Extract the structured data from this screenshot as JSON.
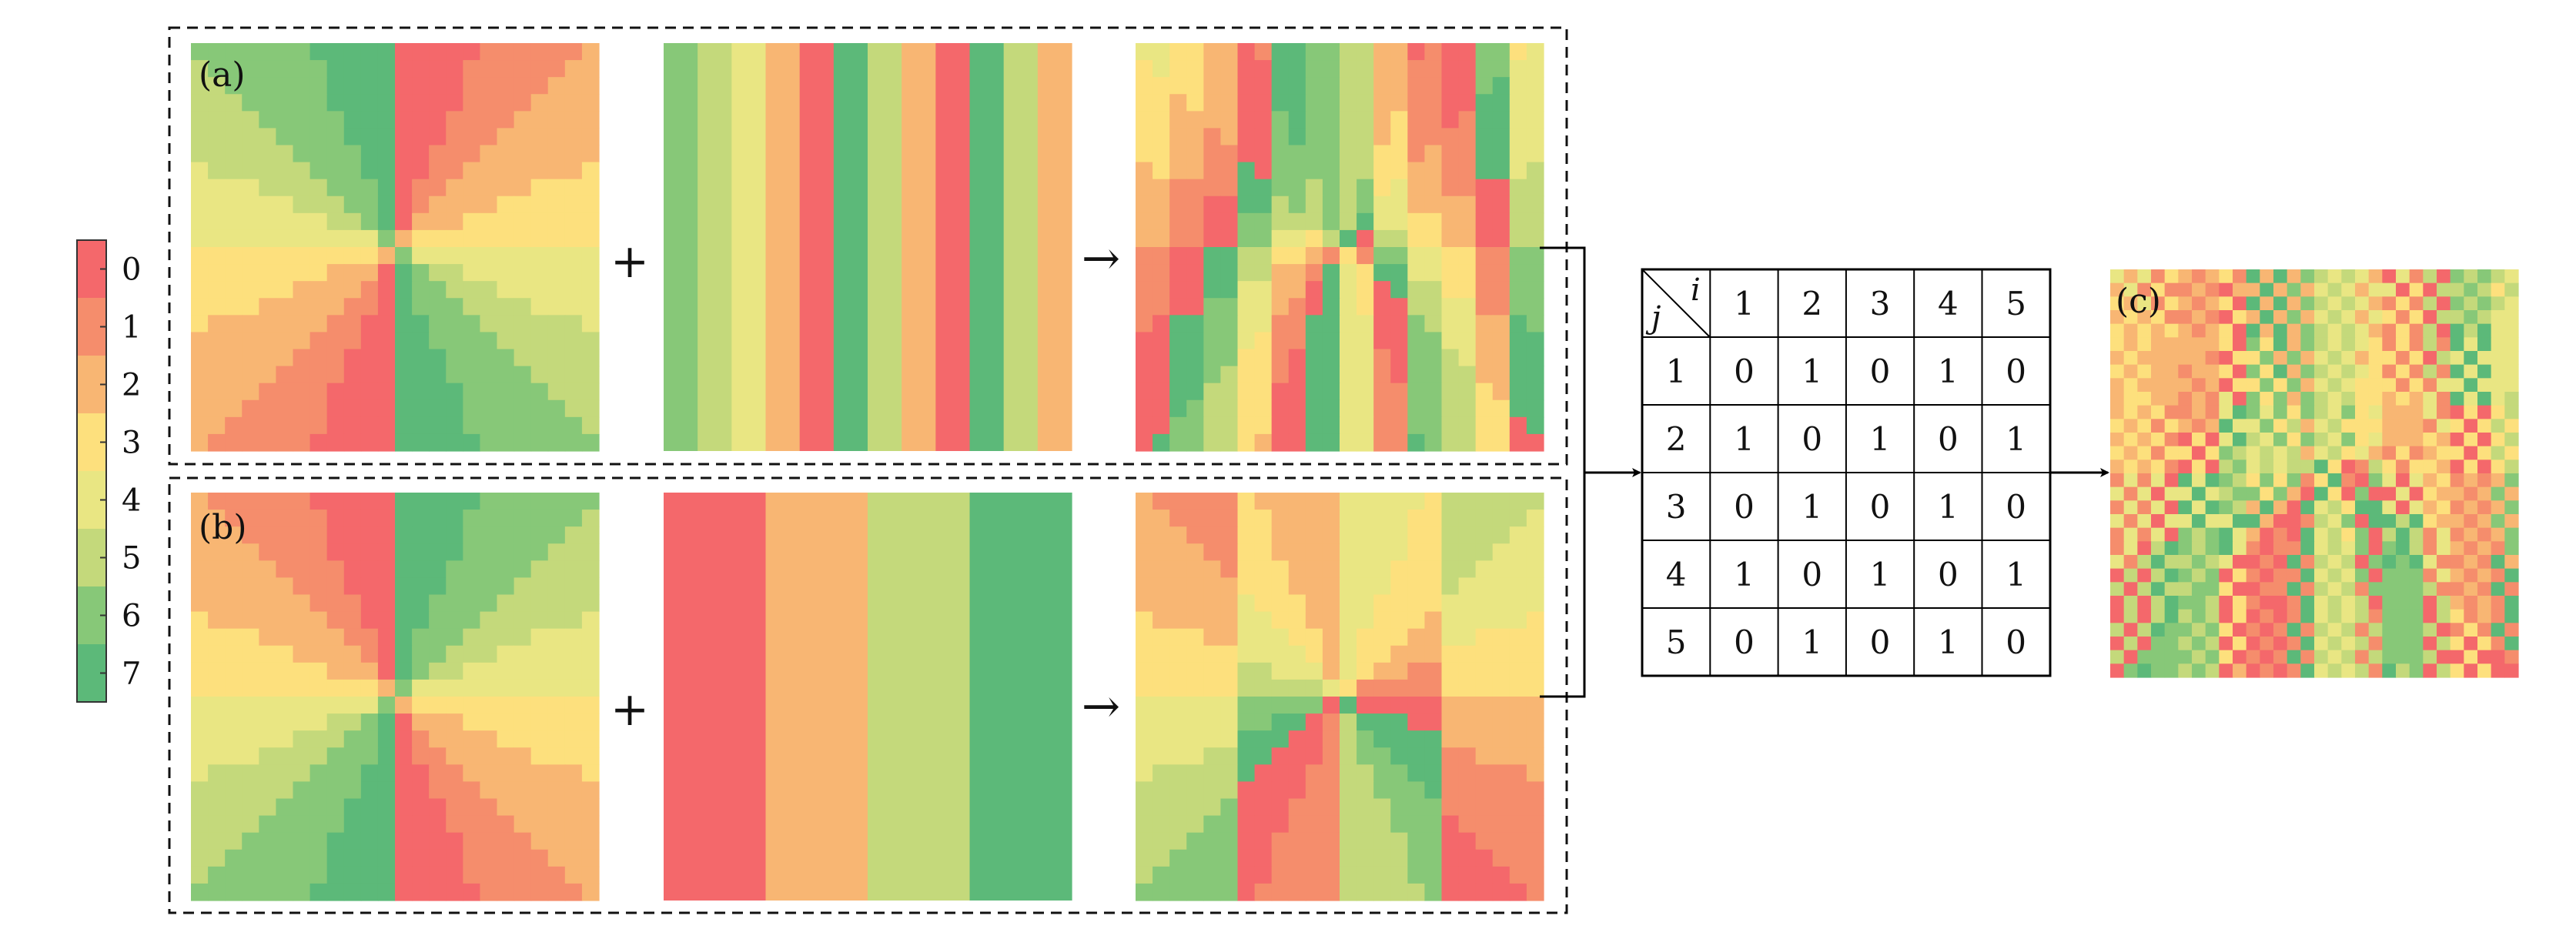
{
  "colors": [
    "#f4686b",
    "#f58d6c",
    "#f8b673",
    "#fde07d",
    "#e9e683",
    "#c4d97b",
    "#87c878",
    "#5cb979"
  ],
  "colorbar": {
    "ticks": [
      "0",
      "1",
      "2",
      "3",
      "4",
      "5",
      "6",
      "7"
    ]
  },
  "panels": {
    "a_label": "(a)",
    "b_label": "(b)",
    "c_label": "(c)"
  },
  "operators": {
    "plus": "+",
    "arrow": "→"
  },
  "stripes": {
    "a": [
      6,
      5,
      4,
      2,
      0,
      7,
      5,
      2,
      0,
      7,
      5,
      2
    ],
    "b": [
      0,
      2,
      5,
      7
    ]
  },
  "table": {
    "header_i": "i",
    "header_j": "j",
    "columns": [
      "1",
      "2",
      "3",
      "4",
      "5"
    ],
    "rows": [
      {
        "j": "1",
        "values": [
          "0",
          "1",
          "0",
          "1",
          "0"
        ]
      },
      {
        "j": "2",
        "values": [
          "1",
          "0",
          "1",
          "0",
          "1"
        ]
      },
      {
        "j": "3",
        "values": [
          "0",
          "1",
          "0",
          "1",
          "0"
        ]
      },
      {
        "j": "4",
        "values": [
          "1",
          "0",
          "1",
          "0",
          "1"
        ]
      },
      {
        "j": "5",
        "values": [
          "0",
          "1",
          "0",
          "1",
          "0"
        ]
      }
    ]
  }
}
